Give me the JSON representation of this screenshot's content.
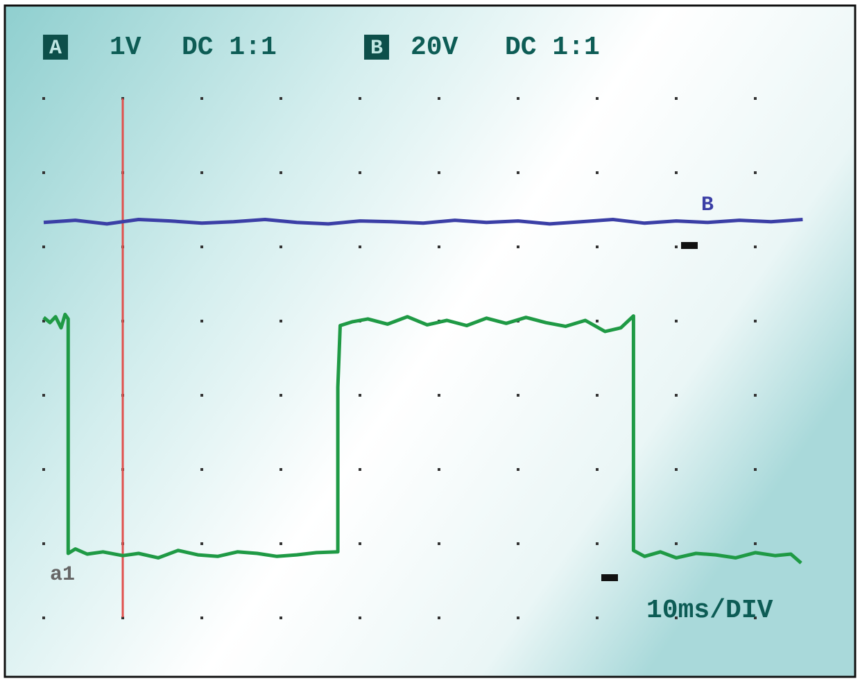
{
  "chart_data": {
    "type": "line",
    "annotations": {
      "a_badge": "A",
      "a_scale": "1V",
      "a_coupling": "DC 1:1",
      "b_badge": "B",
      "b_scale": "20V",
      "b_coupling": "DC 1:1",
      "timebase": "10ms/DIV"
    },
    "xlim": [
      0,
      10
    ],
    "ylim": [
      0,
      7
    ],
    "series": [
      {
        "name": "B",
        "color": "#3b3fa6",
        "x": [
          0,
          0.4,
          0.8,
          1.2,
          1.6,
          2.0,
          2.4,
          2.8,
          3.2,
          3.6,
          4.0,
          4.4,
          4.8,
          5.2,
          5.6,
          6.0,
          6.4,
          6.8,
          7.2,
          7.6,
          8.0,
          8.4,
          8.8,
          9.2,
          9.6
        ],
        "values": [
          5.32,
          5.35,
          5.3,
          5.36,
          5.34,
          5.31,
          5.33,
          5.36,
          5.32,
          5.3,
          5.34,
          5.33,
          5.31,
          5.35,
          5.32,
          5.34,
          5.3,
          5.33,
          5.36,
          5.31,
          5.34,
          5.32,
          5.35,
          5.33,
          5.36
        ]
      },
      {
        "name": "a1",
        "color": "#1f9a45",
        "x": [
          0,
          0.08,
          0.15,
          0.22,
          0.27,
          0.31,
          0.31,
          0.4,
          0.55,
          0.75,
          1.0,
          1.2,
          1.45,
          1.7,
          1.95,
          2.2,
          2.45,
          2.7,
          2.95,
          3.2,
          3.45,
          3.72,
          3.72,
          3.75,
          3.9,
          4.1,
          4.35,
          4.6,
          4.85,
          5.1,
          5.35,
          5.6,
          5.85,
          6.1,
          6.35,
          6.6,
          6.85,
          7.1,
          7.3,
          7.46,
          7.46,
          7.6,
          7.8,
          8.0,
          8.25,
          8.5,
          8.75,
          9.0,
          9.25,
          9.45,
          9.58
        ],
        "values": [
          4.04,
          3.97,
          4.05,
          3.9,
          4.08,
          4.02,
          0.86,
          0.92,
          0.85,
          0.88,
          0.83,
          0.86,
          0.8,
          0.9,
          0.84,
          0.82,
          0.88,
          0.86,
          0.82,
          0.84,
          0.87,
          0.88,
          3.1,
          3.93,
          3.98,
          4.02,
          3.95,
          4.05,
          3.94,
          4.0,
          3.93,
          4.03,
          3.96,
          4.04,
          3.97,
          3.92,
          4.0,
          3.85,
          3.9,
          4.06,
          0.9,
          0.82,
          0.88,
          0.8,
          0.86,
          0.84,
          0.8,
          0.87,
          0.83,
          0.85,
          0.73
        ]
      }
    ]
  }
}
